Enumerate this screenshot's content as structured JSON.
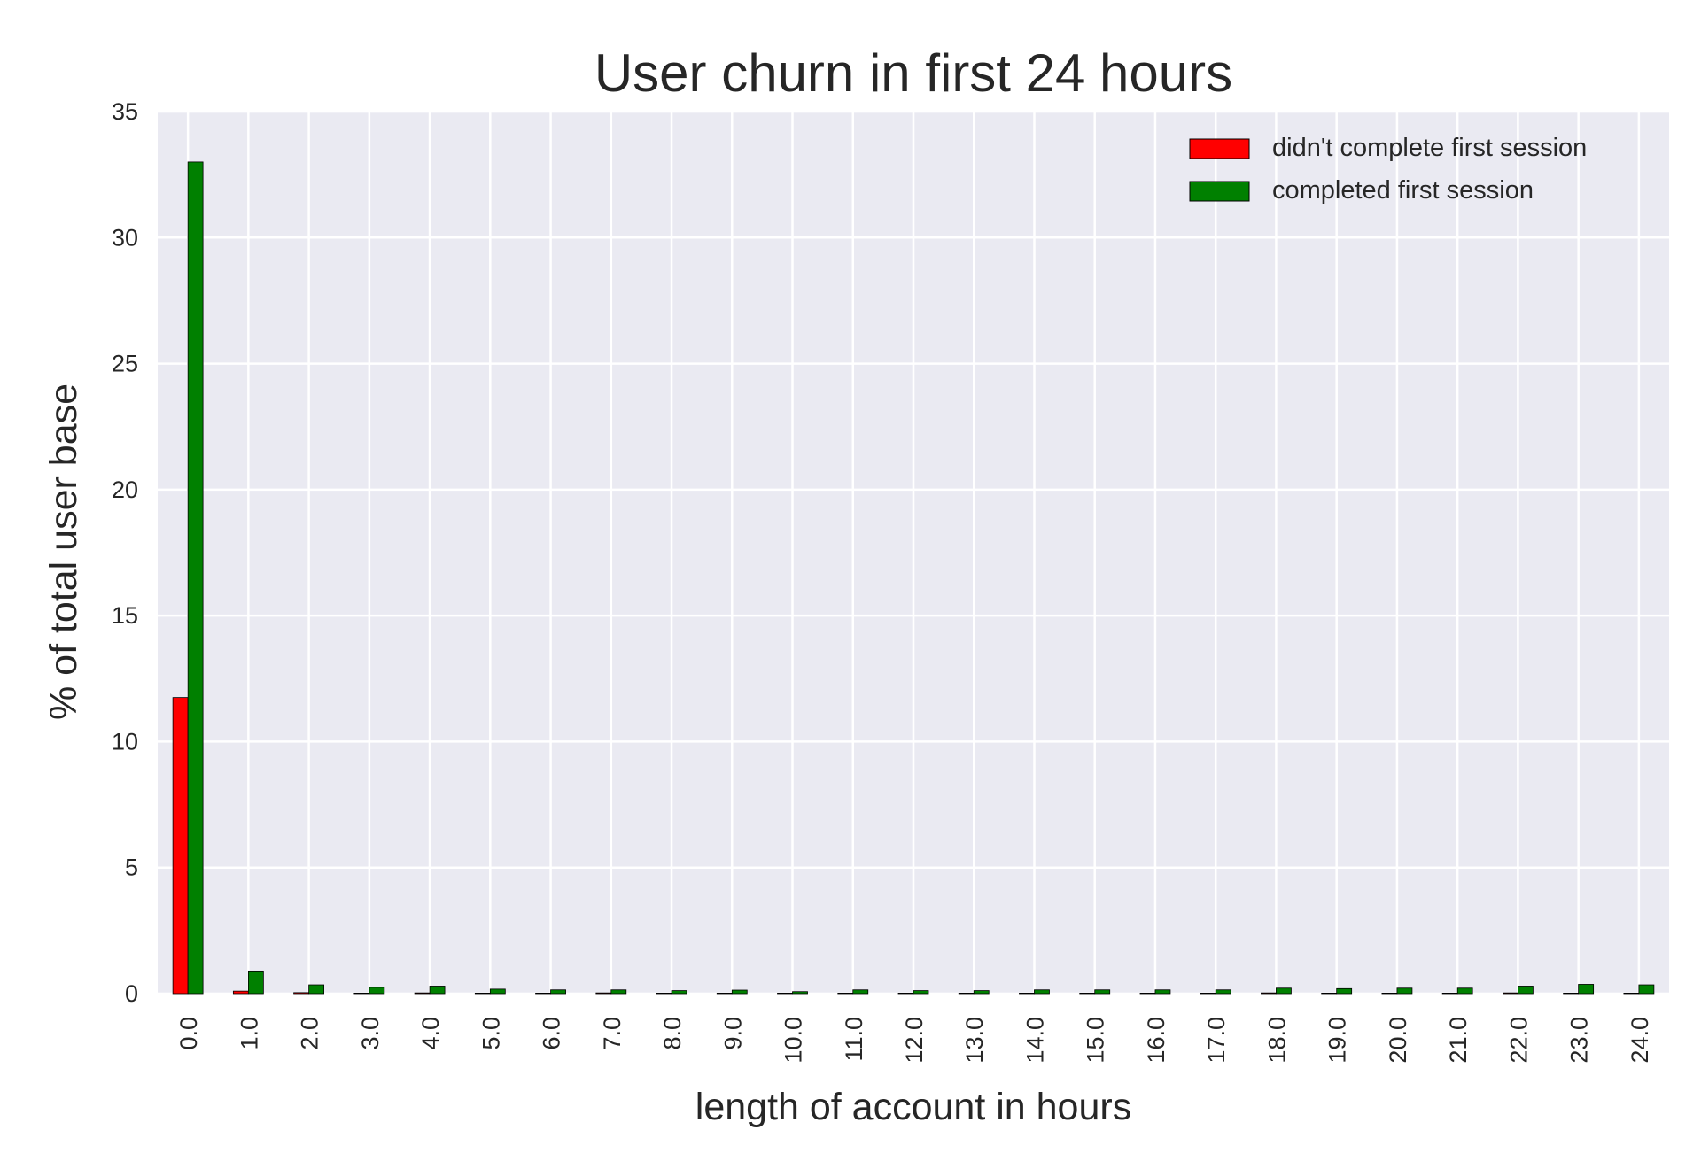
{
  "chart_data": {
    "type": "bar",
    "title": "User churn in first 24 hours",
    "xlabel": "length of account in hours",
    "ylabel": "% of total user base",
    "ylim": [
      0,
      35
    ],
    "yticks": [
      "0",
      "5",
      "10",
      "15",
      "20",
      "25",
      "30",
      "35"
    ],
    "grid": true,
    "legend_position": "top-right",
    "categories": [
      "0.0",
      "1.0",
      "2.0",
      "3.0",
      "4.0",
      "5.0",
      "6.0",
      "7.0",
      "8.0",
      "9.0",
      "10.0",
      "11.0",
      "12.0",
      "13.0",
      "14.0",
      "15.0",
      "16.0",
      "17.0",
      "18.0",
      "19.0",
      "20.0",
      "21.0",
      "22.0",
      "23.0",
      "24.0"
    ],
    "series": [
      {
        "name": "didn't complete first session",
        "color": "#ff0000",
        "values": [
          11.75,
          0.1,
          0.04,
          0.0,
          0.03,
          0.0,
          0.0,
          0.03,
          0.0,
          0.0,
          0.0,
          0.0,
          0.0,
          0.0,
          0.0,
          0.0,
          0.0,
          0.0,
          0.03,
          0.0,
          0.0,
          0.0,
          0.03,
          0.0,
          0.0
        ]
      },
      {
        "name": "completed first session",
        "color": "#008000",
        "values": [
          33.0,
          0.9,
          0.35,
          0.25,
          0.3,
          0.18,
          0.15,
          0.15,
          0.12,
          0.14,
          0.08,
          0.15,
          0.12,
          0.12,
          0.15,
          0.15,
          0.15,
          0.15,
          0.22,
          0.2,
          0.22,
          0.22,
          0.3,
          0.37,
          0.35
        ]
      }
    ],
    "colors": {
      "plot_background": "#eaeaf2",
      "grid": "#ffffff",
      "bar_edge": "#000000"
    }
  }
}
